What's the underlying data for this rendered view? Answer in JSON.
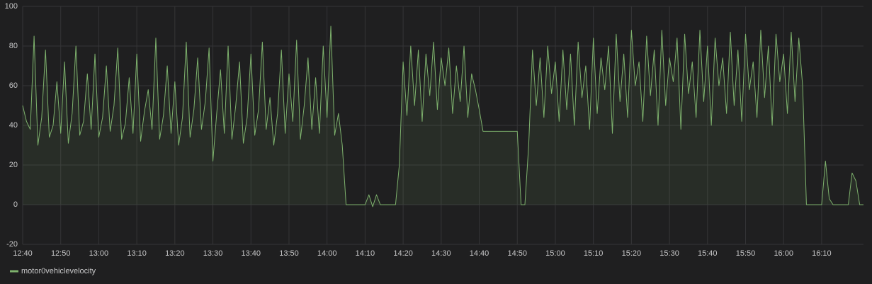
{
  "chart_data": {
    "type": "line",
    "x": [
      760,
      761,
      762,
      763,
      764,
      765,
      766,
      767,
      768,
      769,
      770,
      771,
      772,
      773,
      774,
      775,
      776,
      777,
      778,
      779,
      780,
      781,
      782,
      783,
      784,
      785,
      786,
      787,
      788,
      789,
      790,
      791,
      792,
      793,
      794,
      795,
      796,
      797,
      798,
      799,
      800,
      801,
      802,
      803,
      804,
      805,
      806,
      807,
      808,
      809,
      810,
      811,
      812,
      813,
      814,
      815,
      816,
      817,
      818,
      819,
      820,
      821,
      822,
      823,
      824,
      825,
      826,
      827,
      828,
      829,
      830,
      831,
      832,
      833,
      834,
      835,
      836,
      837,
      838,
      839,
      840,
      841,
      842,
      843,
      844,
      845,
      846,
      847,
      848,
      849,
      850,
      851,
      852,
      853,
      854,
      855,
      856,
      857,
      858,
      859,
      860,
      861,
      862,
      863,
      864,
      865,
      866,
      867,
      868,
      869,
      870,
      871,
      872,
      873,
      874,
      875,
      876,
      877,
      878,
      879,
      880,
      881,
      882,
      883,
      884,
      885,
      886,
      887,
      888,
      889,
      890,
      891,
      892,
      893,
      894,
      895,
      896,
      897,
      898,
      899,
      900,
      901,
      902,
      903,
      904,
      905,
      906,
      907,
      908,
      909,
      910,
      911,
      912,
      913,
      914,
      915,
      916,
      917,
      918,
      919,
      920,
      921,
      922,
      923,
      924,
      925,
      926,
      927,
      928,
      929,
      930,
      931,
      932,
      933,
      934,
      935,
      936,
      937,
      938,
      939,
      940,
      941,
      942,
      943,
      944,
      945,
      946,
      947,
      948,
      949,
      950,
      951,
      952,
      953,
      954,
      955,
      956,
      957,
      958,
      959,
      960,
      961,
      962,
      963,
      964,
      965,
      966,
      967,
      968,
      969,
      970,
      971,
      972,
      973,
      974,
      975,
      976,
      977,
      978,
      979,
      980,
      981
    ],
    "series": [
      {
        "name": "motor0vehiclevelocity",
        "color": "#7eb26d",
        "values": [
          50,
          42,
          38,
          85,
          30,
          44,
          78,
          34,
          40,
          62,
          36,
          72,
          31,
          46,
          80,
          35,
          42,
          66,
          38,
          76,
          34,
          44,
          70,
          37,
          50,
          79,
          33,
          41,
          64,
          36,
          76,
          32,
          47,
          58,
          38,
          84,
          33,
          45,
          70,
          36,
          62,
          30,
          44,
          82,
          34,
          48,
          74,
          38,
          52,
          79,
          22,
          46,
          68,
          36,
          80,
          33,
          50,
          72,
          31,
          44,
          76,
          35,
          48,
          82,
          38,
          54,
          30,
          46,
          78,
          36,
          66,
          42,
          83,
          33,
          50,
          74,
          38,
          64,
          36,
          80,
          44,
          90,
          35,
          46,
          30,
          0,
          0,
          0,
          0,
          0,
          0,
          5,
          -1,
          5,
          0,
          0,
          0,
          0,
          0,
          20,
          72,
          45,
          80,
          50,
          78,
          42,
          76,
          55,
          82,
          48,
          74,
          60,
          79,
          46,
          70,
          52,
          80,
          44,
          66,
          58,
          48,
          37,
          37,
          37,
          37,
          37,
          37,
          37,
          37,
          37,
          37,
          0,
          0,
          30,
          78,
          50,
          74,
          44,
          80,
          56,
          72,
          42,
          78,
          48,
          76,
          40,
          82,
          54,
          70,
          38,
          84,
          46,
          74,
          58,
          80,
          36,
          86,
          52,
          76,
          44,
          88,
          60,
          72,
          42,
          85,
          55,
          78,
          40,
          88,
          50,
          74,
          62,
          84,
          38,
          86,
          56,
          72,
          44,
          88,
          52,
          80,
          40,
          84,
          60,
          74,
          46,
          87,
          50,
          78,
          42,
          86,
          58,
          72,
          44,
          88,
          54,
          80,
          40,
          86,
          62,
          76,
          46,
          87,
          52,
          84,
          60,
          0,
          0,
          0,
          0,
          0,
          22,
          3,
          0,
          0,
          0,
          0,
          0,
          16,
          12,
          0,
          0
        ]
      }
    ],
    "xlim": [
      760,
      981
    ],
    "xticks": [
      {
        "value": 760,
        "label": "12:40"
      },
      {
        "value": 770,
        "label": "12:50"
      },
      {
        "value": 780,
        "label": "13:00"
      },
      {
        "value": 790,
        "label": "13:10"
      },
      {
        "value": 800,
        "label": "13:20"
      },
      {
        "value": 810,
        "label": "13:30"
      },
      {
        "value": 820,
        "label": "13:40"
      },
      {
        "value": 830,
        "label": "13:50"
      },
      {
        "value": 840,
        "label": "14:00"
      },
      {
        "value": 850,
        "label": "14:10"
      },
      {
        "value": 860,
        "label": "14:20"
      },
      {
        "value": 870,
        "label": "14:30"
      },
      {
        "value": 880,
        "label": "14:40"
      },
      {
        "value": 890,
        "label": "14:50"
      },
      {
        "value": 900,
        "label": "15:00"
      },
      {
        "value": 910,
        "label": "15:10"
      },
      {
        "value": 920,
        "label": "15:20"
      },
      {
        "value": 930,
        "label": "15:30"
      },
      {
        "value": 940,
        "label": "15:40"
      },
      {
        "value": 950,
        "label": "15:50"
      },
      {
        "value": 960,
        "label": "16:00"
      },
      {
        "value": 970,
        "label": "16:10"
      }
    ],
    "ylim": [
      -20,
      100
    ],
    "yticks": [
      -20,
      0,
      20,
      40,
      60,
      80,
      100
    ],
    "grid": true,
    "legend": "bottom-left",
    "fill": true
  }
}
